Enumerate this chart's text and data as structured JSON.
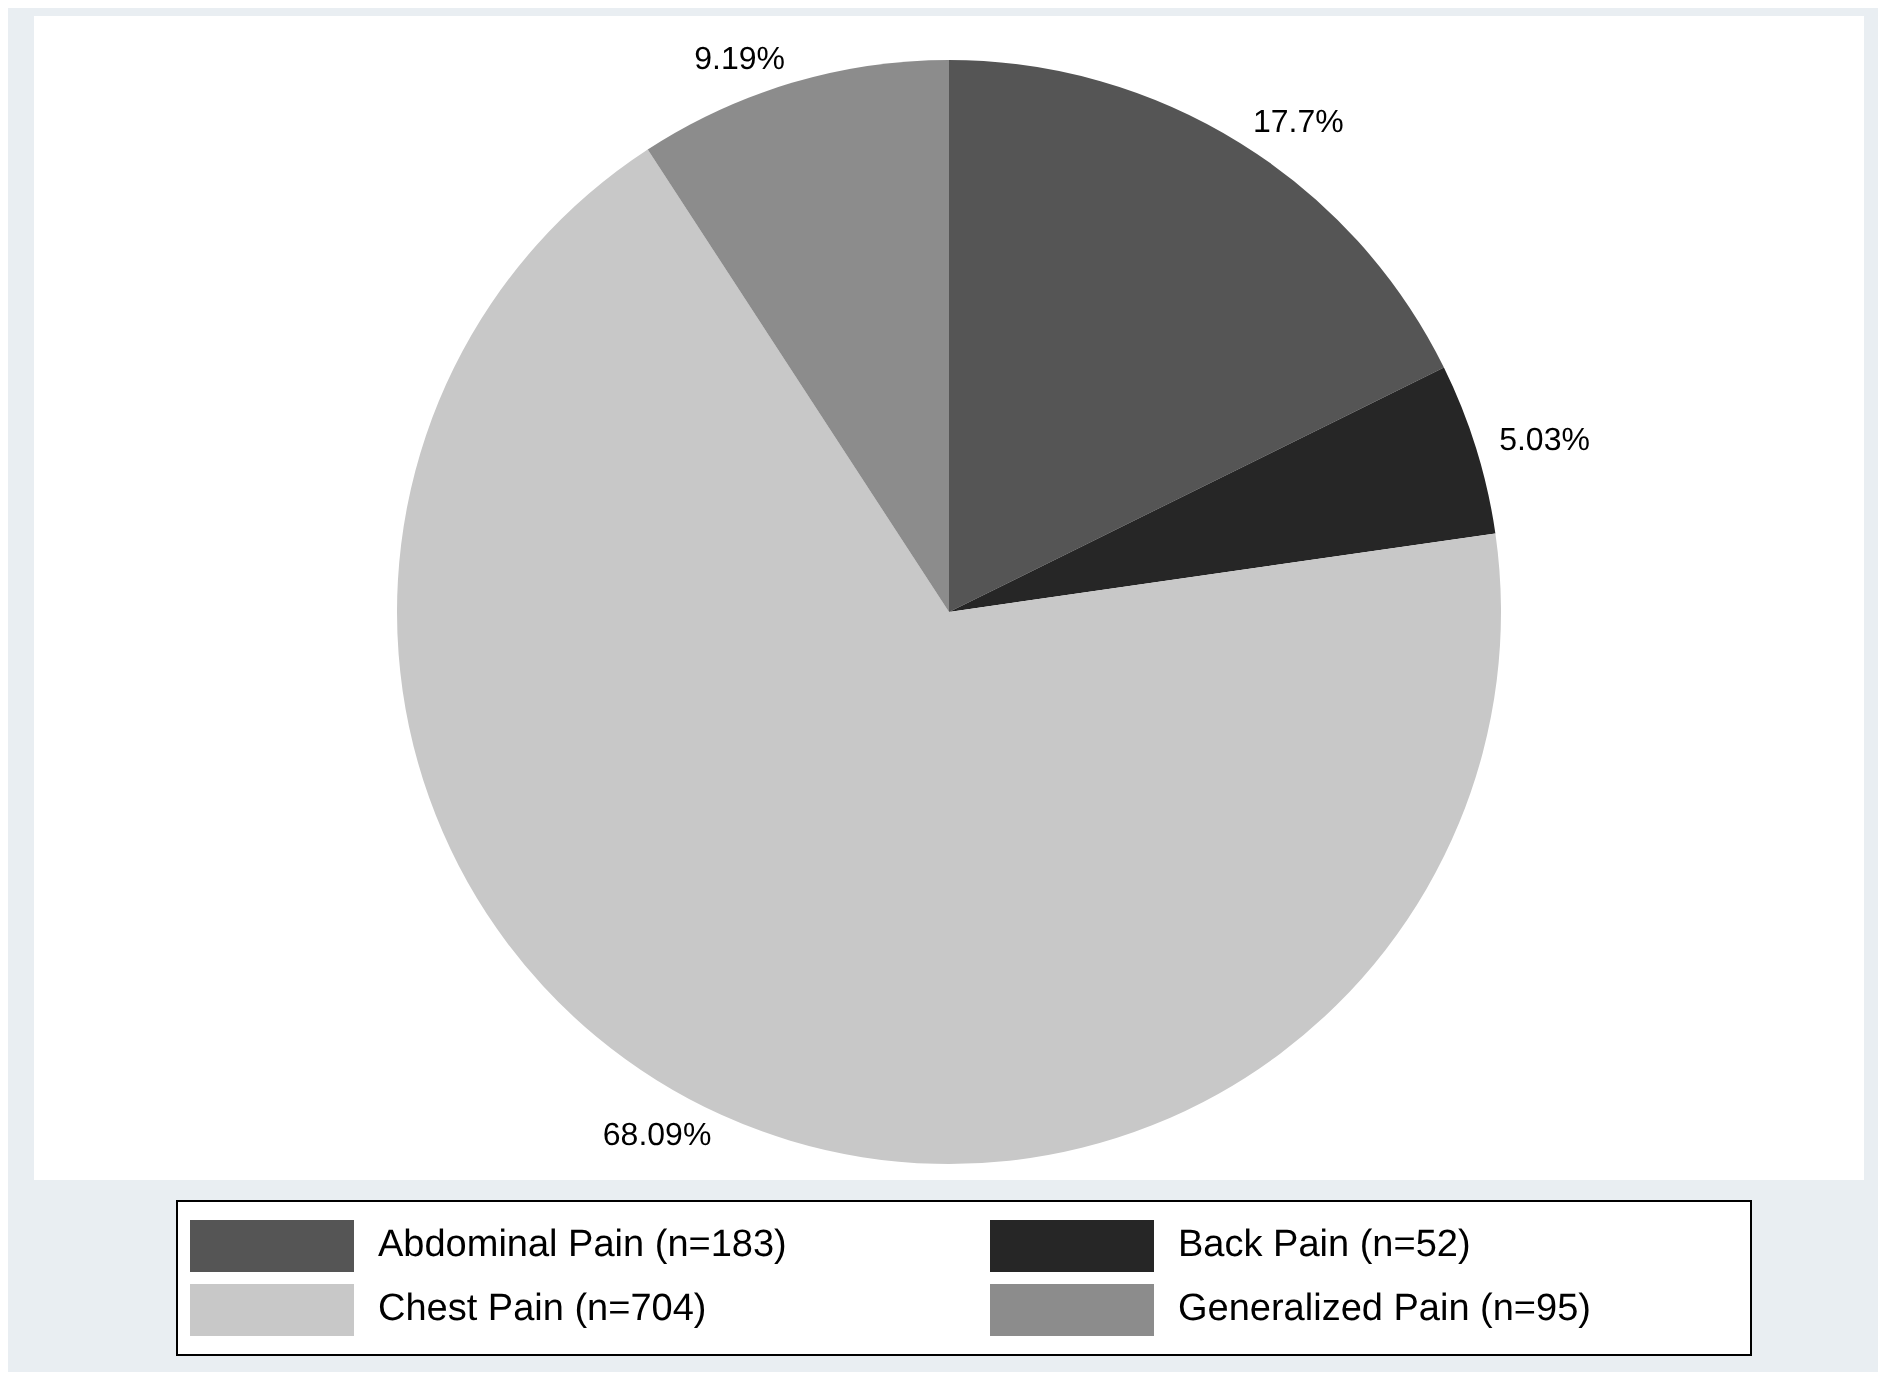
{
  "chart_data": {
    "type": "pie",
    "categories": [
      "Abdominal Pain (n=183)",
      "Back Pain (n=52)",
      "Chest Pain (n=704)",
      "Generalized Pain (n=95)"
    ],
    "values": [
      17.7,
      5.03,
      68.09,
      9.19
    ],
    "value_labels": [
      "17.7%",
      "5.03%",
      "68.09%",
      "9.19%"
    ],
    "colors": [
      "#555555",
      "#262626",
      "#c8c8c8",
      "#8c8c8c"
    ],
    "legend": "bottom"
  }
}
